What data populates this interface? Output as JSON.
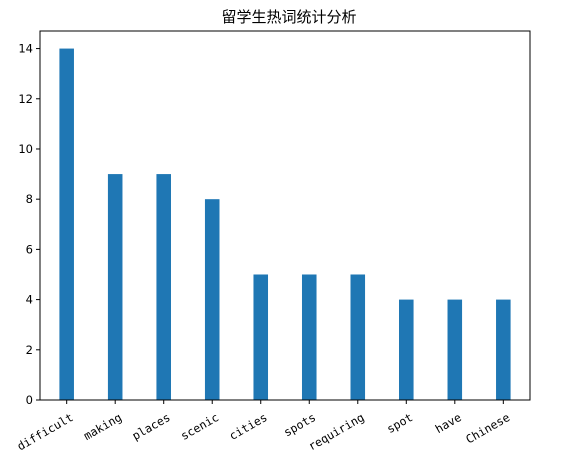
{
  "chart_data": {
    "type": "bar",
    "title": "留学生热词统计分析",
    "xlabel": "",
    "ylabel": "",
    "categories": [
      "difficult",
      "making",
      "places",
      "scenic",
      "cities",
      "spots",
      "requiring",
      "spot",
      "have",
      "Chinese"
    ],
    "values": [
      14,
      9,
      9,
      8,
      5,
      5,
      5,
      4,
      4,
      4
    ],
    "ylim": [
      0,
      14.7
    ],
    "yticks": [
      0,
      2,
      4,
      6,
      8,
      10,
      12,
      14
    ],
    "bar_color": "#1f77b4",
    "grid": false,
    "legend": "none"
  }
}
